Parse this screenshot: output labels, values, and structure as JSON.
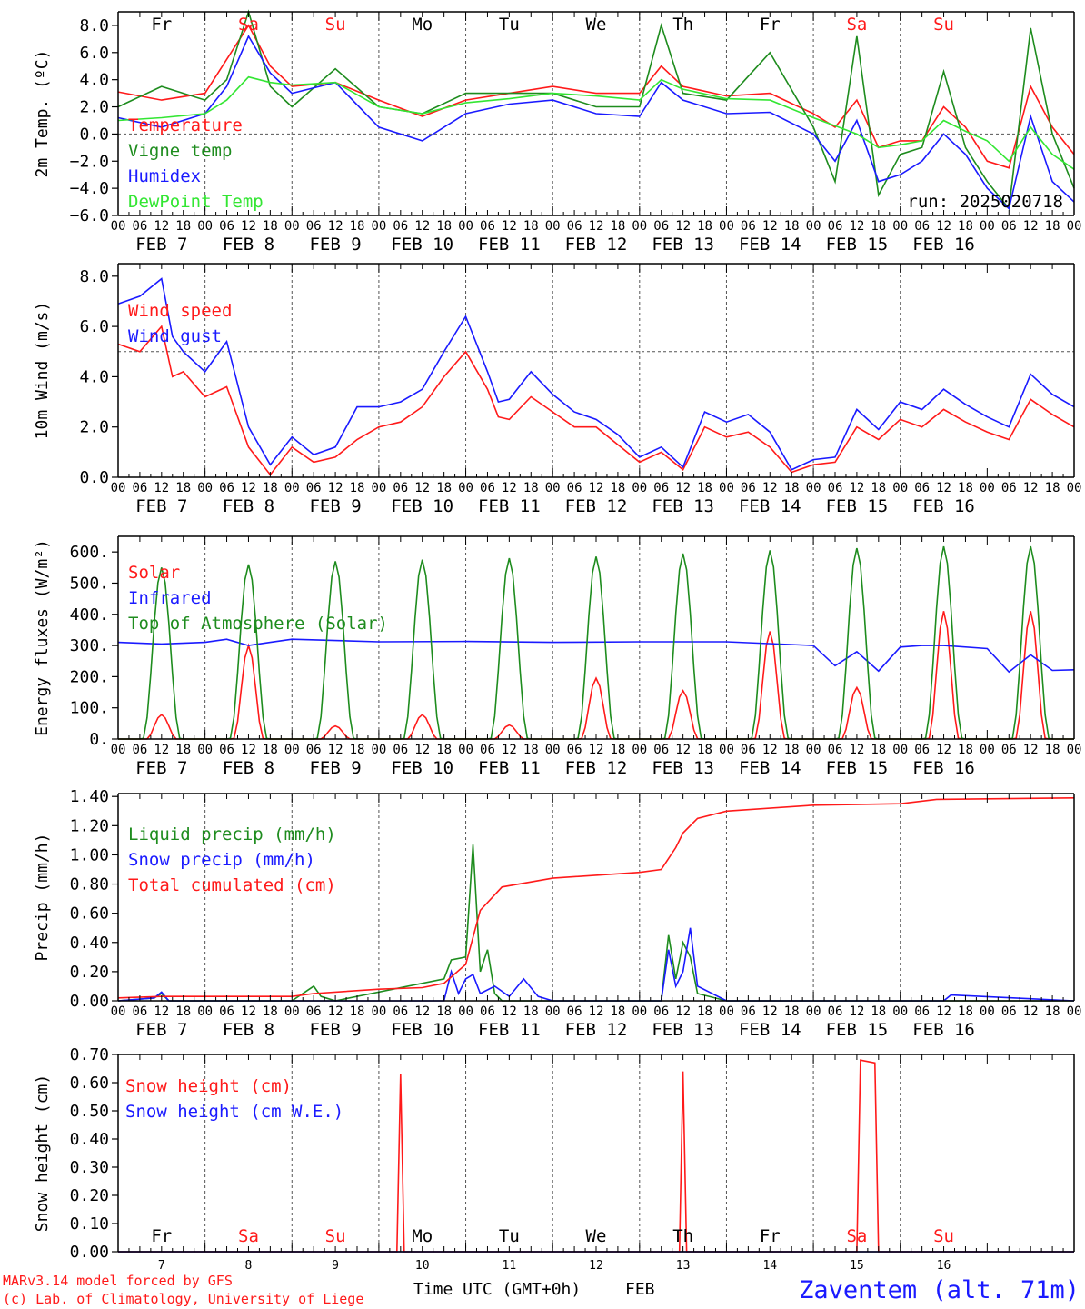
{
  "colors": {
    "red": "#ff1a1a",
    "green": "#1e8c1e",
    "blue": "#1a1aff",
    "lightgreen": "#33e633",
    "axis": "#000000",
    "grid": "#555555"
  },
  "x_axis": {
    "hour_ticks": [
      "00",
      "06",
      "12",
      "18"
    ],
    "days": [
      "FEB  7",
      "FEB  8",
      "FEB  9",
      "FEB 10",
      "FEB 11",
      "FEB 12",
      "FEB 13",
      "FEB 14",
      "FEB 15",
      "FEB 16"
    ],
    "weekdays": [
      "Fr",
      "Sa",
      "Su",
      "Mo",
      "Tu",
      "We",
      "Th",
      "Fr",
      "Sa",
      "Su"
    ],
    "weekend_flags": [
      false,
      true,
      true,
      false,
      false,
      false,
      false,
      false,
      true,
      true
    ],
    "day_numbers": [
      "7",
      "8",
      "9",
      "10",
      "11",
      "12",
      "13",
      "14",
      "15",
      "16"
    ],
    "bottom_title": "Time UTC (GMT+0h)",
    "bottom_month": "FEB"
  },
  "footer": {
    "model": "MARv3.14 model forced by GFS",
    "credit": "(c) Lab. of Climatology, University of Liege",
    "station": "Zaventem (alt. 71m)"
  },
  "chart_data": [
    {
      "type": "line",
      "ylabel": "2m Temp. (ºC)",
      "ylim": [
        -6,
        9
      ],
      "yticks": [
        "8.0",
        "6.0",
        "4.0",
        "2.0",
        "0.0",
        "−2.0",
        "−4.0",
        "−6.0"
      ],
      "ytick_values": [
        8,
        6,
        4,
        2,
        0,
        -2,
        -4,
        -6
      ],
      "reference_line": 0,
      "annotation": "run: 2025020718",
      "x_unit": "hours since FEB 7 00 UTC",
      "series": [
        {
          "name": "Temperature",
          "color": "red",
          "x": [
            0,
            12,
            24,
            30,
            36,
            42,
            48,
            60,
            72,
            84,
            96,
            108,
            120,
            132,
            144,
            150,
            156,
            168,
            180,
            192,
            198,
            204,
            210,
            216,
            222,
            228,
            234,
            240,
            246,
            252,
            258,
            264
          ],
          "values": [
            3.1,
            2.5,
            3.0,
            5.5,
            8.0,
            5.0,
            3.5,
            3.8,
            2.5,
            1.3,
            2.5,
            3.0,
            3.5,
            3.0,
            3.0,
            5.0,
            3.5,
            2.8,
            3.0,
            1.5,
            0.5,
            2.5,
            -1.0,
            -0.5,
            -0.5,
            2.0,
            0.5,
            -2.0,
            -2.5,
            3.5,
            0.5,
            -1.5
          ]
        },
        {
          "name": "Vigne temp",
          "color": "green",
          "x": [
            0,
            12,
            24,
            30,
            36,
            42,
            48,
            60,
            72,
            84,
            96,
            108,
            120,
            132,
            144,
            150,
            156,
            168,
            180,
            192,
            198,
            204,
            210,
            216,
            222,
            228,
            234,
            240,
            246,
            252,
            258,
            264
          ],
          "values": [
            2.0,
            3.5,
            2.5,
            4.0,
            9.0,
            3.5,
            2.0,
            4.8,
            2.0,
            1.5,
            3.0,
            3.0,
            3.0,
            2.0,
            2.0,
            8.0,
            3.0,
            2.5,
            6.0,
            0.5,
            -3.5,
            7.2,
            -4.5,
            -1.5,
            -1.0,
            4.6,
            -1.0,
            -3.5,
            -5.5,
            7.8,
            0.0,
            -4.0
          ]
        },
        {
          "name": "Humidex",
          "color": "blue",
          "x": [
            0,
            12,
            24,
            30,
            36,
            42,
            48,
            60,
            72,
            84,
            96,
            108,
            120,
            132,
            144,
            150,
            156,
            168,
            180,
            192,
            198,
            204,
            210,
            216,
            222,
            228,
            234,
            240,
            246,
            252,
            258,
            264
          ],
          "values": [
            1.2,
            0.5,
            1.5,
            3.5,
            7.2,
            4.5,
            3.0,
            3.8,
            0.5,
            -0.5,
            1.5,
            2.2,
            2.5,
            1.5,
            1.3,
            3.8,
            2.5,
            1.5,
            1.6,
            0.0,
            -2.0,
            1.0,
            -3.5,
            -3.0,
            -2.0,
            0.0,
            -1.5,
            -4.0,
            -5.5,
            1.3,
            -3.5,
            -5.0
          ]
        },
        {
          "name": "DewPoint Temp",
          "color": "lightgreen",
          "x": [
            0,
            12,
            24,
            30,
            36,
            42,
            48,
            60,
            72,
            84,
            96,
            108,
            120,
            132,
            144,
            150,
            156,
            168,
            180,
            192,
            198,
            204,
            210,
            216,
            222,
            228,
            234,
            240,
            246,
            252,
            258,
            264
          ],
          "values": [
            1.0,
            1.2,
            1.5,
            2.5,
            4.2,
            3.8,
            3.6,
            3.8,
            2.0,
            1.5,
            2.3,
            2.6,
            3.0,
            2.8,
            2.5,
            4.0,
            3.3,
            2.6,
            2.5,
            1.2,
            0.6,
            0.0,
            -1.0,
            -0.8,
            -0.5,
            1.0,
            0.2,
            -0.5,
            -2.0,
            0.5,
            -1.5,
            -2.6
          ]
        }
      ]
    },
    {
      "type": "line",
      "ylabel": "10m Wind (m/s)",
      "ylim": [
        0,
        8.5
      ],
      "yticks": [
        "8.0",
        "6.0",
        "4.0",
        "2.0",
        "0.0"
      ],
      "ytick_values": [
        8,
        6,
        4,
        2,
        0
      ],
      "reference_line": 5,
      "x_unit": "hours since FEB 7 00 UTC",
      "series": [
        {
          "name": "Wind speed",
          "color": "red",
          "x": [
            0,
            6,
            12,
            15,
            18,
            24,
            30,
            36,
            42,
            48,
            54,
            60,
            66,
            72,
            78,
            84,
            90,
            96,
            102,
            105,
            108,
            114,
            120,
            126,
            132,
            138,
            144,
            150,
            156,
            162,
            168,
            174,
            180,
            186,
            192,
            198,
            204,
            210,
            216,
            222,
            228,
            234,
            240,
            246,
            252,
            258,
            264
          ],
          "values": [
            5.3,
            5.0,
            6.0,
            4.0,
            4.2,
            3.2,
            3.6,
            1.2,
            0.1,
            1.2,
            0.6,
            0.8,
            1.5,
            2.0,
            2.2,
            2.8,
            4.0,
            5.0,
            3.5,
            2.4,
            2.3,
            3.2,
            2.6,
            2.0,
            2.0,
            1.3,
            0.6,
            1.0,
            0.3,
            2.0,
            1.6,
            1.8,
            1.2,
            0.2,
            0.5,
            0.6,
            2.0,
            1.5,
            2.3,
            2.0,
            2.7,
            2.2,
            1.8,
            1.5,
            3.1,
            2.5,
            2.0
          ]
        },
        {
          "name": "Wind gust",
          "color": "blue",
          "x": [
            0,
            6,
            12,
            15,
            18,
            24,
            30,
            36,
            42,
            48,
            54,
            60,
            66,
            72,
            78,
            84,
            90,
            96,
            102,
            105,
            108,
            114,
            120,
            126,
            132,
            138,
            144,
            150,
            156,
            162,
            168,
            174,
            180,
            186,
            192,
            198,
            204,
            210,
            216,
            222,
            228,
            234,
            240,
            246,
            252,
            258,
            264
          ],
          "values": [
            6.9,
            7.2,
            7.9,
            5.6,
            5.0,
            4.2,
            5.4,
            2.0,
            0.5,
            1.6,
            0.9,
            1.2,
            2.8,
            2.8,
            3.0,
            3.5,
            5.0,
            6.4,
            4.2,
            3.0,
            3.1,
            4.2,
            3.3,
            2.6,
            2.3,
            1.7,
            0.8,
            1.2,
            0.4,
            2.6,
            2.2,
            2.5,
            1.8,
            0.3,
            0.7,
            0.8,
            2.7,
            1.9,
            3.0,
            2.7,
            3.5,
            2.9,
            2.4,
            2.0,
            4.1,
            3.3,
            2.8
          ]
        }
      ]
    },
    {
      "type": "line",
      "ylabel": "Energy fluxes (W/m²)",
      "ylim": [
        0,
        650
      ],
      "yticks": [
        "600.",
        "500.",
        "400.",
        "300.",
        "200.",
        "100.",
        "0."
      ],
      "ytick_values": [
        600,
        500,
        400,
        300,
        200,
        100,
        0
      ],
      "x_unit": "hours since FEB 7 00 UTC",
      "daily_sun_peaks": {
        "toa_peak": [
          550,
          560,
          570,
          575,
          580,
          585,
          595,
          605,
          612,
          618
        ],
        "solar_peak": [
          78,
          300,
          42,
          78,
          45,
          195,
          155,
          345,
          165,
          410
        ]
      },
      "series": [
        {
          "name": "Solar",
          "color": "red",
          "derived_from": "daily_sun_peaks.solar_peak"
        },
        {
          "name": "Infrared",
          "color": "blue",
          "x": [
            0,
            12,
            24,
            30,
            36,
            42,
            48,
            72,
            96,
            120,
            144,
            168,
            192,
            198,
            204,
            210,
            216,
            222,
            228,
            240,
            246,
            252,
            258,
            264
          ],
          "values": [
            310,
            305,
            310,
            320,
            300,
            310,
            320,
            312,
            313,
            310,
            312,
            312,
            300,
            235,
            280,
            218,
            295,
            300,
            300,
            290,
            215,
            270,
            220,
            222
          ]
        },
        {
          "name": "Top of Atmosphere (Solar)",
          "color": "green",
          "derived_from": "daily_sun_peaks.toa_peak"
        }
      ]
    },
    {
      "type": "line",
      "ylabel": "Precip (mm/h)",
      "ylim": [
        0,
        1.42
      ],
      "yticks": [
        "1.40",
        "1.20",
        "1.00",
        "0.80",
        "0.60",
        "0.40",
        "0.20",
        "0.00"
      ],
      "ytick_values": [
        1.4,
        1.2,
        1.0,
        0.8,
        0.6,
        0.4,
        0.2,
        0.0
      ],
      "x_unit": "hours since FEB 7 00 UTC",
      "series": [
        {
          "name": "Liquid precip (mm/h)",
          "color": "green",
          "x": [
            0,
            10,
            12,
            14,
            48,
            54,
            56,
            60,
            90,
            92,
            96,
            98,
            100,
            102,
            104,
            106,
            110,
            150,
            152,
            154,
            156,
            158,
            160,
            168,
            264
          ],
          "values": [
            0.0,
            0.02,
            0.05,
            0.0,
            0.0,
            0.1,
            0.03,
            0.0,
            0.15,
            0.28,
            0.3,
            1.07,
            0.2,
            0.35,
            0.05,
            0.0,
            0.0,
            0.0,
            0.45,
            0.15,
            0.4,
            0.3,
            0.05,
            0.0,
            0.0
          ]
        },
        {
          "name": "Snow precip (mm/h)",
          "color": "blue",
          "x": [
            0,
            10,
            12,
            14,
            48,
            90,
            92,
            94,
            96,
            98,
            100,
            104,
            108,
            112,
            116,
            120,
            150,
            152,
            154,
            156,
            158,
            160,
            168,
            228,
            230,
            264
          ],
          "values": [
            0.0,
            0.02,
            0.06,
            0.0,
            0.0,
            0.0,
            0.2,
            0.05,
            0.15,
            0.18,
            0.05,
            0.1,
            0.03,
            0.15,
            0.03,
            0.0,
            0.0,
            0.35,
            0.1,
            0.2,
            0.5,
            0.1,
            0.0,
            0.0,
            0.04,
            0.0
          ]
        },
        {
          "name": "Total cumulated (cm)",
          "color": "red",
          "x": [
            0,
            12,
            48,
            54,
            72,
            84,
            90,
            96,
            100,
            106,
            120,
            144,
            150,
            154,
            156,
            160,
            168,
            192,
            216,
            226,
            264
          ],
          "values": [
            0.02,
            0.03,
            0.03,
            0.05,
            0.08,
            0.09,
            0.12,
            0.25,
            0.62,
            0.78,
            0.84,
            0.88,
            0.9,
            1.05,
            1.15,
            1.25,
            1.3,
            1.34,
            1.35,
            1.38,
            1.39
          ]
        }
      ]
    },
    {
      "type": "line",
      "ylabel": "Snow height (cm)",
      "ylim": [
        0,
        0.7
      ],
      "yticks": [
        "0.70",
        "0.60",
        "0.50",
        "0.40",
        "0.30",
        "0.20",
        "0.10",
        "0.00"
      ],
      "ytick_values": [
        0.7,
        0.6,
        0.5,
        0.4,
        0.3,
        0.2,
        0.1,
        0.0
      ],
      "x_unit": "hours since FEB 7 00 UTC",
      "series": [
        {
          "name": "Snow height (cm)",
          "color": "red",
          "x": [
            0,
            77,
            78,
            79,
            155,
            156,
            157,
            204,
            205,
            209,
            210,
            264
          ],
          "values": [
            0,
            0,
            0.63,
            0,
            0,
            0.64,
            0,
            0,
            0.68,
            0.67,
            0,
            0
          ]
        },
        {
          "name": "Snow height (cm W.E.)",
          "color": "blue",
          "x": [
            0,
            264
          ],
          "values": [
            0,
            0
          ]
        }
      ]
    }
  ]
}
